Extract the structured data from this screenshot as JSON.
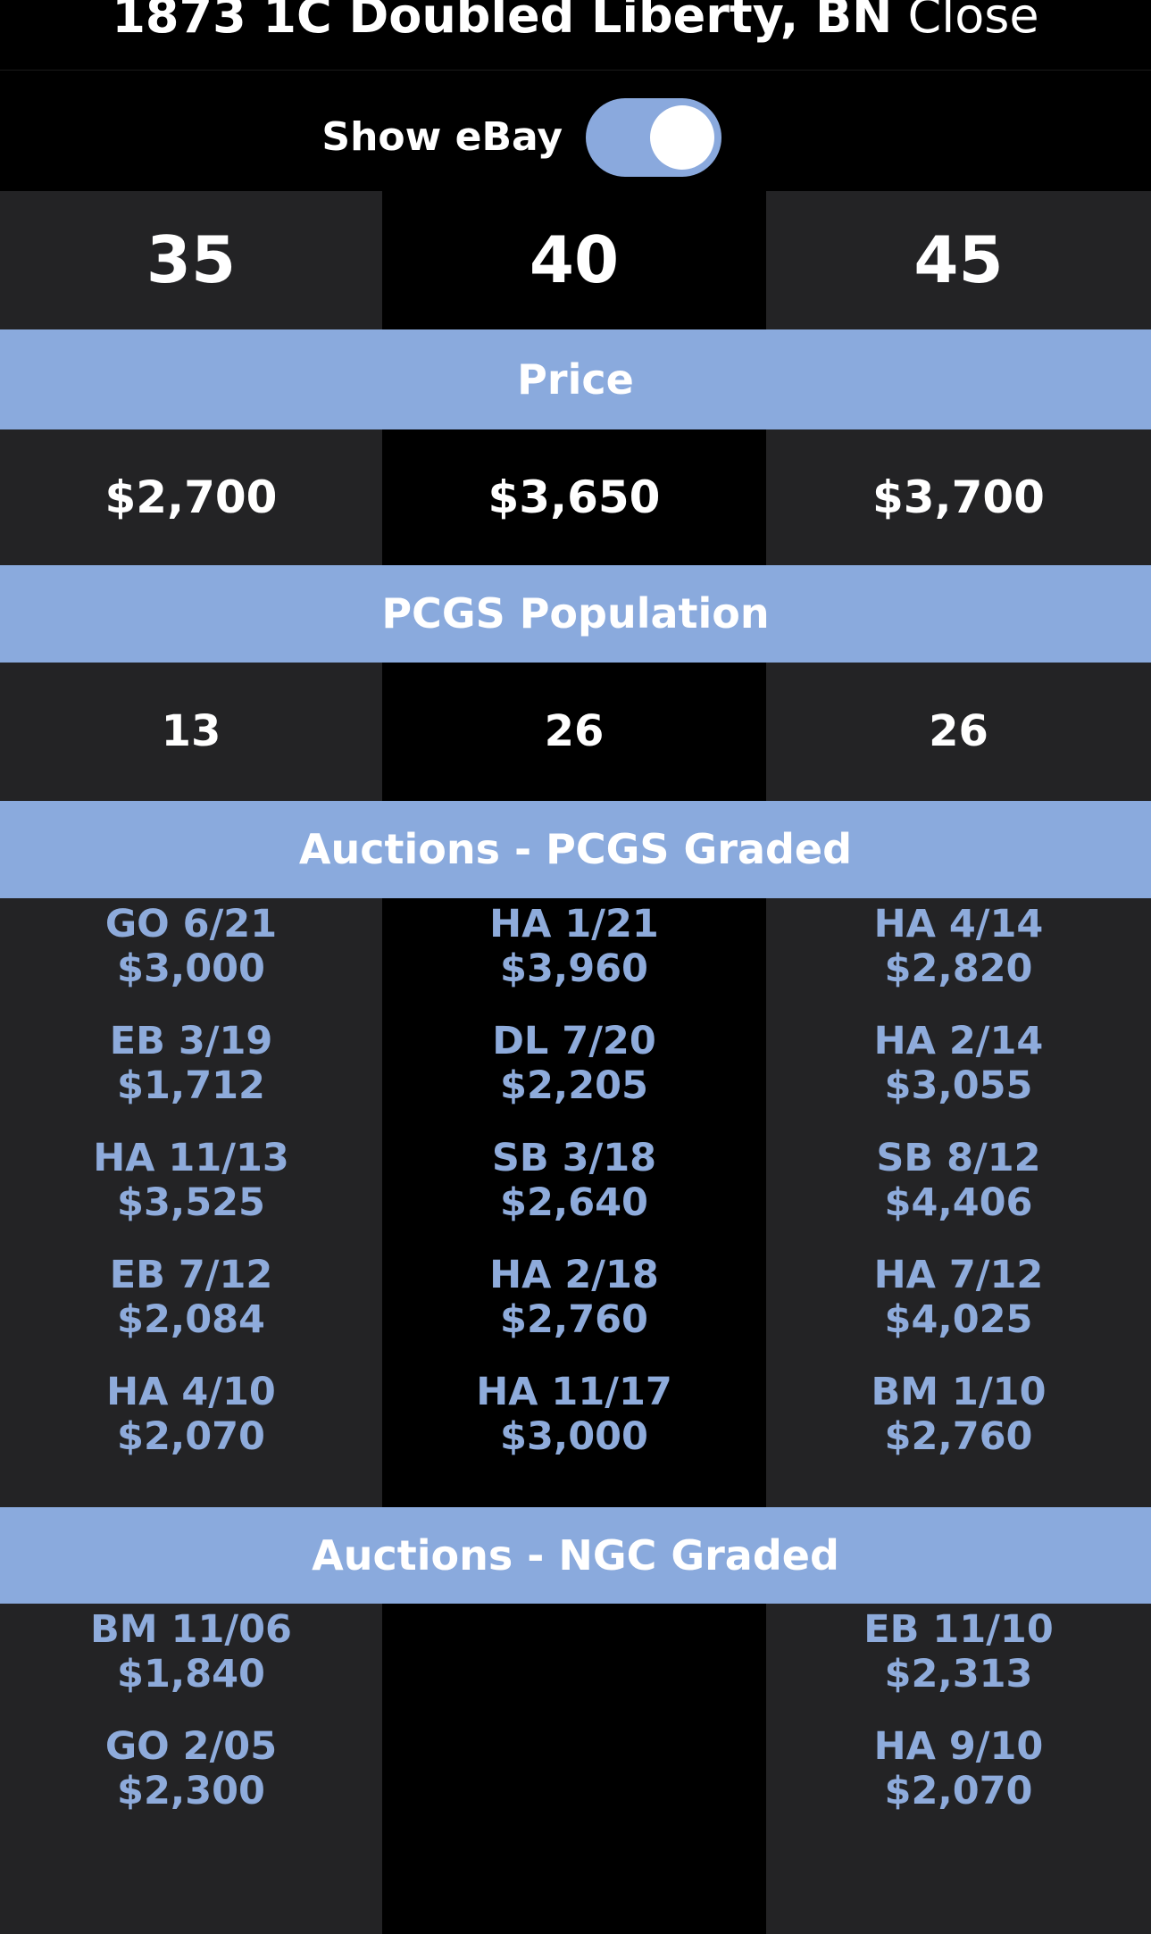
{
  "header": {
    "title": "1873 1C Doubled Liberty, BN",
    "close": "Close"
  },
  "toggle": {
    "label": "Show eBay"
  },
  "grades": [
    "35",
    "40",
    "45"
  ],
  "sections": {
    "price": "Price",
    "population": "PCGS Population",
    "pcgs_auctions": "Auctions - PCGS Graded",
    "ngc_auctions": "Auctions - NGC Graded"
  },
  "price": [
    "$2,700",
    "$3,650",
    "$3,700"
  ],
  "population": [
    "13",
    "26",
    "26"
  ],
  "pcgs_auctions": [
    [
      {
        "label": "GO 6/21",
        "price": "$3,000"
      },
      {
        "label": "EB 3/19",
        "price": "$1,712"
      },
      {
        "label": "HA 11/13",
        "price": "$3,525"
      },
      {
        "label": "EB 7/12",
        "price": "$2,084"
      },
      {
        "label": "HA 4/10",
        "price": "$2,070"
      }
    ],
    [
      {
        "label": "HA 1/21",
        "price": "$3,960"
      },
      {
        "label": "DL 7/20",
        "price": "$2,205"
      },
      {
        "label": "SB 3/18",
        "price": "$2,640"
      },
      {
        "label": "HA 2/18",
        "price": "$2,760"
      },
      {
        "label": "HA 11/17",
        "price": "$3,000"
      }
    ],
    [
      {
        "label": "HA 4/14",
        "price": "$2,820"
      },
      {
        "label": "HA 2/14",
        "price": "$3,055"
      },
      {
        "label": "SB 8/12",
        "price": "$4,406"
      },
      {
        "label": "HA 7/12",
        "price": "$4,025"
      },
      {
        "label": "BM 1/10",
        "price": "$2,760"
      }
    ]
  ],
  "ngc_auctions": [
    [
      {
        "label": "BM 11/06",
        "price": "$1,840"
      },
      {
        "label": "GO 2/05",
        "price": "$2,300"
      }
    ],
    [],
    [
      {
        "label": "EB 11/10",
        "price": "$2,313"
      },
      {
        "label": "HA 9/10",
        "price": "$2,070"
      }
    ]
  ]
}
